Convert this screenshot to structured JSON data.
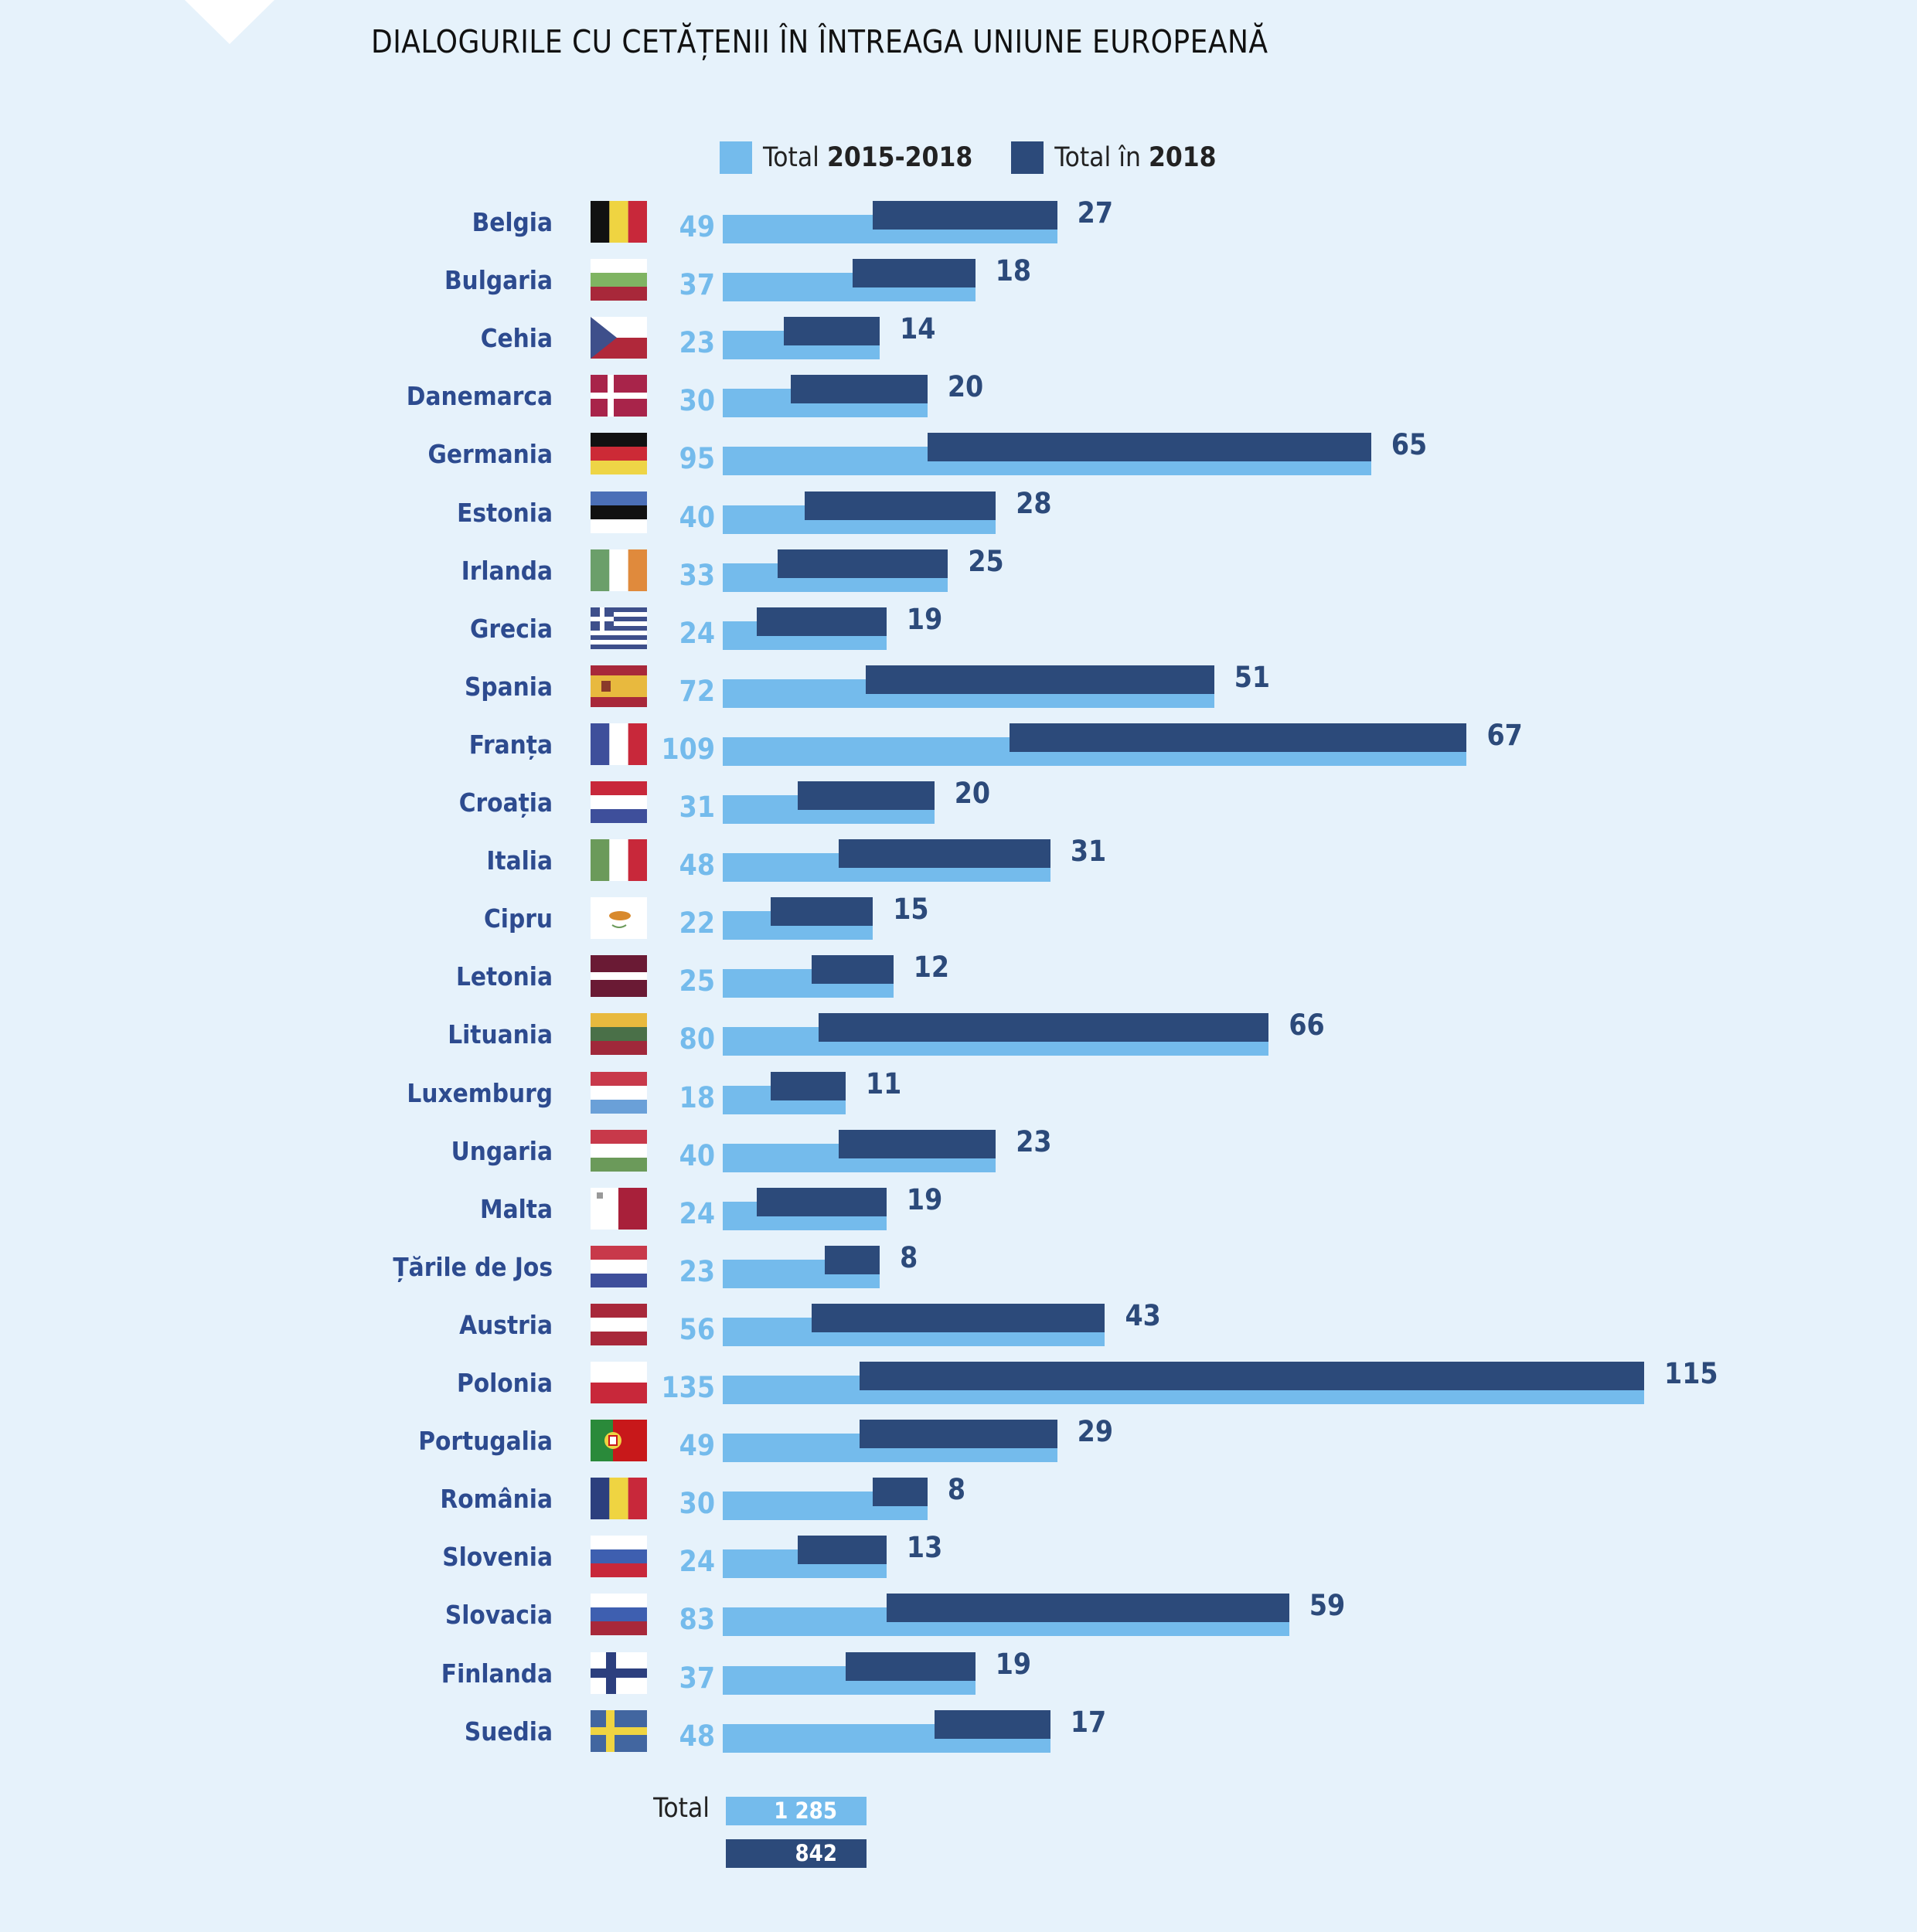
{
  "title": "DIALOGURILE CU CETĂȚENII ÎN ÎNTREAGA UNIUNE EUROPEANĂ",
  "legend": [
    {
      "prefix": "Total",
      "bold": "2015-2018",
      "color": "#74bbec"
    },
    {
      "prefix": "Total în",
      "bold": "2018",
      "color": "#2c4a7a"
    }
  ],
  "chart_data": {
    "type": "bar",
    "orientation": "horizontal",
    "title": "DIALOGURILE CU CETĂȚENII ÎN ÎNTREAGA UNIUNE EUROPEANĂ",
    "categories": [
      "Belgia",
      "Bulgaria",
      "Cehia",
      "Danemarca",
      "Germania",
      "Estonia",
      "Irlanda",
      "Grecia",
      "Spania",
      "Franța",
      "Croația",
      "Italia",
      "Cipru",
      "Letonia",
      "Lituania",
      "Luxemburg",
      "Ungaria",
      "Malta",
      "Țările de Jos",
      "Austria",
      "Polonia",
      "Portugalia",
      "România",
      "Slovenia",
      "Slovacia",
      "Finlanda",
      "Suedia"
    ],
    "series": [
      {
        "name": "Total 2015-2018",
        "color": "#74bbec",
        "values": [
          49,
          37,
          23,
          30,
          95,
          40,
          33,
          24,
          72,
          109,
          31,
          48,
          22,
          25,
          80,
          18,
          40,
          24,
          23,
          56,
          135,
          49,
          30,
          24,
          83,
          37,
          48
        ]
      },
      {
        "name": "Total în 2018",
        "color": "#2c4a7a",
        "values": [
          27,
          18,
          14,
          20,
          65,
          28,
          25,
          19,
          51,
          67,
          20,
          31,
          15,
          12,
          66,
          11,
          23,
          19,
          8,
          43,
          115,
          29,
          8,
          13,
          59,
          19,
          17
        ]
      }
    ],
    "xlim": [
      0,
      135
    ],
    "grid": false,
    "legend_position": "top"
  },
  "totals": {
    "label": "Total",
    "all": "1 285",
    "y2018": "842"
  },
  "colors": {
    "background": "#e6f2fb",
    "light": "#74bbec",
    "dark": "#2c4a7a",
    "country_label": "#2d4b8f"
  }
}
